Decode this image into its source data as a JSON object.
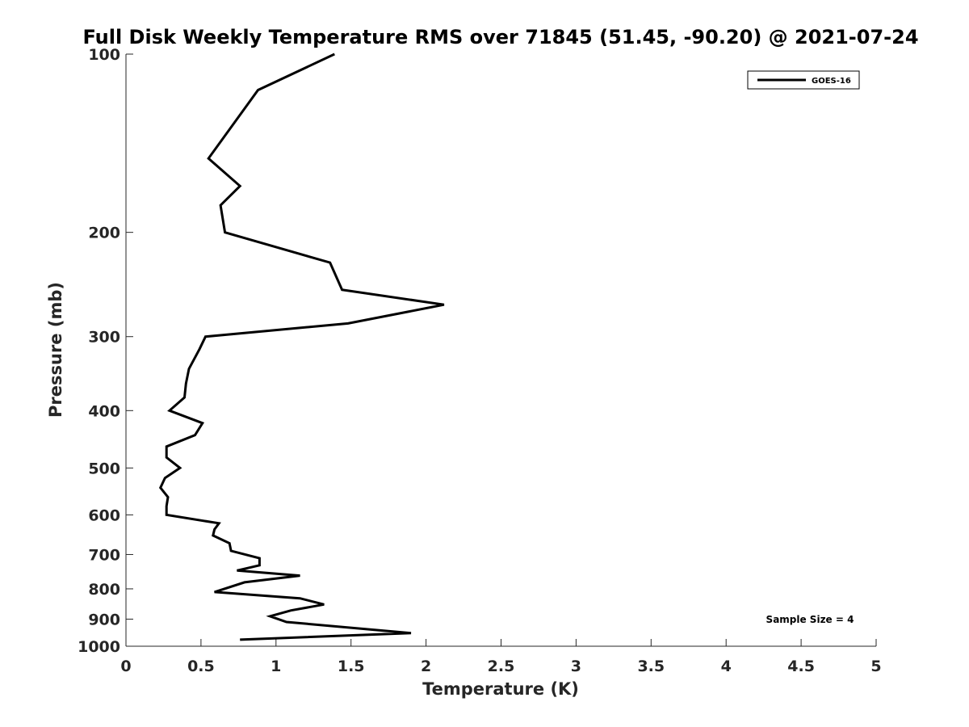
{
  "chart_data": {
    "type": "line",
    "title": "Full Disk Weekly Temperature RMS over 71845 (51.45, -90.20) @ 2021-07-24",
    "xlabel": "Temperature (K)",
    "ylabel": "Pressure (mb)",
    "xlim": [
      0,
      5
    ],
    "ylim": [
      100,
      1000
    ],
    "y_scale": "log",
    "y_reversed": true,
    "x_ticks": [
      "0",
      "0.5",
      "1",
      "1.5",
      "2",
      "2.5",
      "3",
      "3.5",
      "4",
      "4.5",
      "5"
    ],
    "y_ticks": [
      "100",
      "200",
      "300",
      "400",
      "500",
      "600",
      "700",
      "800",
      "900",
      "1000"
    ],
    "legend_position": "top-right",
    "grid": false,
    "annotation": "Sample Size = 4",
    "series": [
      {
        "name": "GOES-16",
        "color": "#000000",
        "x": [
          1.39,
          0.88,
          0.55,
          0.76,
          0.63,
          0.66,
          1.36,
          1.44,
          2.12,
          1.48,
          0.53,
          0.49,
          0.42,
          0.4,
          0.39,
          0.29,
          0.51,
          0.46,
          0.27,
          0.27,
          0.36,
          0.26,
          0.23,
          0.28,
          0.27,
          0.27,
          0.62,
          0.59,
          0.58,
          0.69,
          0.7,
          0.89,
          0.89,
          0.74,
          1.16,
          0.79,
          0.59,
          1.16,
          1.32,
          1.1,
          0.96,
          1.07,
          1.9,
          0.76
        ],
        "y": [
          100,
          115,
          150,
          167,
          180,
          200,
          225,
          250,
          265,
          285,
          300,
          315,
          340,
          360,
          380,
          400,
          420,
          440,
          460,
          480,
          500,
          520,
          540,
          560,
          580,
          600,
          620,
          635,
          650,
          670,
          690,
          710,
          730,
          745,
          760,
          780,
          810,
          830,
          850,
          870,
          890,
          910,
          950,
          975
        ]
      }
    ]
  }
}
